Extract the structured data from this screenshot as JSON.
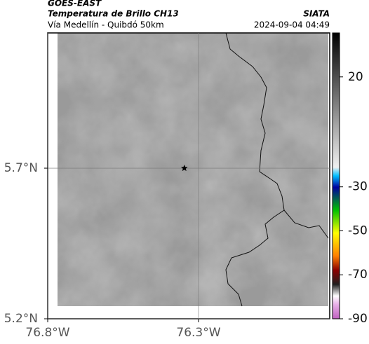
{
  "header": {
    "source": "GOES-EAST",
    "title": "Temperatura de Brillo CH13",
    "subtitle": "Vía Medellín - Quibdó 50km",
    "brand": "SIATA",
    "datetime": "2024-09-04 04:49"
  },
  "map": {
    "xlim": [
      -76.8,
      -75.865
    ],
    "ylim": [
      5.2,
      6.149
    ],
    "xticks": [
      {
        "value": -76.8,
        "label": "76.8°W"
      },
      {
        "value": -76.3,
        "label": "76.3°W"
      }
    ],
    "yticks": [
      {
        "value": 5.7,
        "label": "5.7°N"
      },
      {
        "value": 5.2,
        "label": "5.2°N"
      }
    ],
    "grid": true,
    "marker": {
      "lon": -76.347,
      "lat": 5.7
    }
  },
  "colorbar": {
    "lim": [
      -90,
      40
    ],
    "ticks": [
      20,
      -30,
      -50,
      -70,
      -90
    ]
  }
}
